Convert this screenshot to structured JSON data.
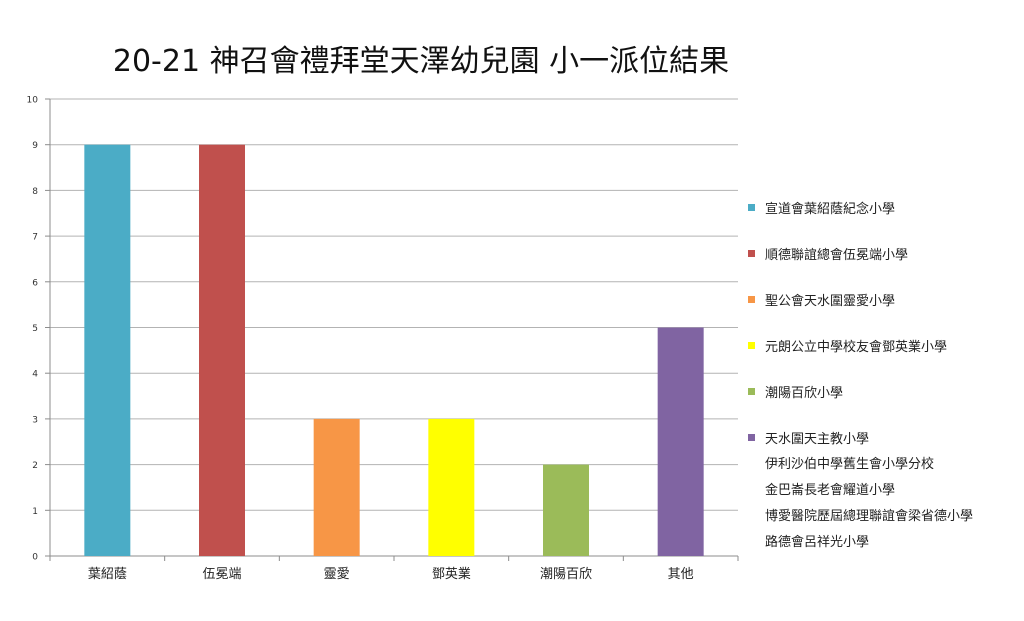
{
  "chart_data": {
    "type": "bar",
    "title": "20-21 神召會禮拜堂天澤幼兒園 小一派位結果",
    "xlabel": "",
    "ylabel": "",
    "ylim": [
      0,
      10
    ],
    "yticks": [
      0,
      1,
      2,
      3,
      4,
      5,
      6,
      7,
      8,
      9,
      10
    ],
    "grid": true,
    "legend_position": "right",
    "categories": [
      "葉紹蔭",
      "伍冕端",
      "靈愛",
      "鄧英業",
      "潮陽百欣",
      "其他"
    ],
    "values": [
      9,
      9,
      3,
      3,
      2,
      5
    ],
    "colors": [
      "#4bacc6",
      "#c0504d",
      "#f79646",
      "#ffff00",
      "#9bbb59",
      "#8064a2"
    ],
    "legend": [
      {
        "label": "宣道會葉紹蔭紀念小學",
        "color": "#4bacc6"
      },
      {
        "label": "順德聯誼總會伍冕端小學",
        "color": "#c0504d"
      },
      {
        "label": "聖公會天水圍靈愛小學",
        "color": "#f79646"
      },
      {
        "label": "元朗公立中學校友會鄧英業小學",
        "color": "#ffff00"
      },
      {
        "label": "潮陽百欣小學",
        "color": "#9bbb59"
      },
      {
        "label": "天水圍天主教小學",
        "color": "#8064a2"
      }
    ],
    "legend_extra_lines": [
      "伊利沙伯中學舊生會小學分校",
      "金巴崙長老會耀道小學",
      "博愛醫院歷屆總理聯誼會梁省德小學",
      "路德會呂祥光小學"
    ]
  }
}
